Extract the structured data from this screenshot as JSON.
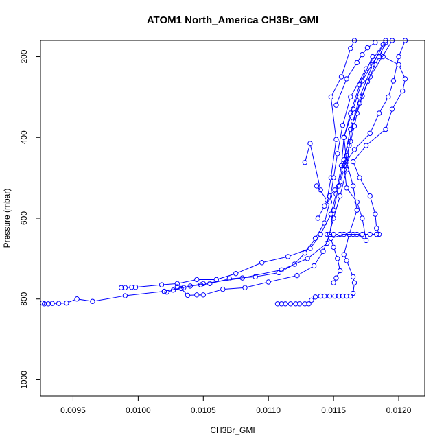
{
  "chart_data": {
    "type": "line",
    "title": "ATOM1 North_America CH3Br_GMI",
    "xlabel": "CH3Br_GMI",
    "ylabel": "Pressure (mbar)",
    "xlim": [
      0.00925,
      0.0122
    ],
    "ylim": [
      1040,
      160
    ],
    "y_axis_inverted": true,
    "x_ticks": [
      0.0095,
      0.01,
      0.0105,
      0.011,
      0.0115,
      0.012
    ],
    "x_tick_labels": [
      "0.0095",
      "0.0100",
      "0.0105",
      "0.0110",
      "0.0115",
      "0.0120"
    ],
    "y_ticks": [
      200,
      400,
      600,
      800,
      1000
    ],
    "y_tick_labels": [
      "200",
      "400",
      "600",
      "800",
      "1000"
    ],
    "grid": false,
    "series_color": "#0000ff",
    "marker": "open-circle",
    "series": [
      {
        "values": [
          {
            "x": 0.009265,
            "y": 810
          },
          {
            "x": 0.00928,
            "y": 812
          },
          {
            "x": 0.00931,
            "y": 812
          },
          {
            "x": 0.00934,
            "y": 811
          },
          {
            "x": 0.00939,
            "y": 811
          },
          {
            "x": 0.00945,
            "y": 810
          },
          {
            "x": 0.00953,
            "y": 800
          },
          {
            "x": 0.00965,
            "y": 806
          },
          {
            "x": 0.0099,
            "y": 792
          },
          {
            "x": 0.0102,
            "y": 781
          },
          {
            "x": 0.0105,
            "y": 762
          },
          {
            "x": 0.0108,
            "y": 748
          },
          {
            "x": 0.0111,
            "y": 728
          },
          {
            "x": 0.0113,
            "y": 700
          },
          {
            "x": 0.01145,
            "y": 662
          },
          {
            "x": 0.0115,
            "y": 600
          },
          {
            "x": 0.01155,
            "y": 545
          },
          {
            "x": 0.0116,
            "y": 480
          },
          {
            "x": 0.01162,
            "y": 420
          },
          {
            "x": 0.01165,
            "y": 360
          },
          {
            "x": 0.0117,
            "y": 300
          },
          {
            "x": 0.0118,
            "y": 220
          },
          {
            "x": 0.0119,
            "y": 160
          }
        ]
      },
      {
        "values": [
          {
            "x": 0.00987,
            "y": 772
          },
          {
            "x": 0.0099,
            "y": 772
          },
          {
            "x": 0.00995,
            "y": 771
          },
          {
            "x": 0.00998,
            "y": 771
          },
          {
            "x": 0.01018,
            "y": 765
          },
          {
            "x": 0.0103,
            "y": 762
          },
          {
            "x": 0.01045,
            "y": 752
          },
          {
            "x": 0.0106,
            "y": 752
          },
          {
            "x": 0.01075,
            "y": 737
          },
          {
            "x": 0.01095,
            "y": 710
          },
          {
            "x": 0.01115,
            "y": 695
          },
          {
            "x": 0.01132,
            "y": 675
          },
          {
            "x": 0.0114,
            "y": 640
          },
          {
            "x": 0.01148,
            "y": 590
          },
          {
            "x": 0.01152,
            "y": 540
          },
          {
            "x": 0.01156,
            "y": 470
          },
          {
            "x": 0.01158,
            "y": 400
          },
          {
            "x": 0.01165,
            "y": 330
          },
          {
            "x": 0.01172,
            "y": 260
          },
          {
            "x": 0.01185,
            "y": 190
          }
        ]
      },
      {
        "values": [
          {
            "x": 0.0102,
            "y": 782
          },
          {
            "x": 0.01022,
            "y": 783
          },
          {
            "x": 0.01027,
            "y": 778
          },
          {
            "x": 0.01033,
            "y": 774
          },
          {
            "x": 0.01038,
            "y": 791
          },
          {
            "x": 0.01045,
            "y": 790
          },
          {
            "x": 0.0105,
            "y": 790
          },
          {
            "x": 0.01065,
            "y": 776
          },
          {
            "x": 0.01082,
            "y": 772
          },
          {
            "x": 0.011,
            "y": 758
          },
          {
            "x": 0.01122,
            "y": 742
          },
          {
            "x": 0.01135,
            "y": 718
          },
          {
            "x": 0.01142,
            "y": 682
          },
          {
            "x": 0.01147,
            "y": 640
          },
          {
            "x": 0.0115,
            "y": 580
          },
          {
            "x": 0.01154,
            "y": 520
          },
          {
            "x": 0.01158,
            "y": 455
          },
          {
            "x": 0.01163,
            "y": 380
          },
          {
            "x": 0.0117,
            "y": 315
          },
          {
            "x": 0.01178,
            "y": 250
          },
          {
            "x": 0.01195,
            "y": 160
          }
        ]
      },
      {
        "values": [
          {
            "x": 0.0103,
            "y": 770
          },
          {
            "x": 0.01035,
            "y": 772
          },
          {
            "x": 0.0104,
            "y": 768
          },
          {
            "x": 0.01048,
            "y": 765
          },
          {
            "x": 0.01055,
            "y": 762
          },
          {
            "x": 0.0107,
            "y": 750
          },
          {
            "x": 0.0109,
            "y": 745
          },
          {
            "x": 0.01108,
            "y": 735
          },
          {
            "x": 0.0112,
            "y": 714
          },
          {
            "x": 0.01128,
            "y": 686
          },
          {
            "x": 0.01136,
            "y": 650
          },
          {
            "x": 0.01143,
            "y": 612
          },
          {
            "x": 0.01147,
            "y": 560
          },
          {
            "x": 0.0115,
            "y": 500
          },
          {
            "x": 0.01153,
            "y": 440
          },
          {
            "x": 0.01157,
            "y": 370
          },
          {
            "x": 0.01163,
            "y": 300
          },
          {
            "x": 0.01175,
            "y": 230
          },
          {
            "x": 0.01188,
            "y": 170
          }
        ]
      },
      {
        "values": [
          {
            "x": 0.01107,
            "y": 812
          },
          {
            "x": 0.0111,
            "y": 812
          },
          {
            "x": 0.01113,
            "y": 812
          },
          {
            "x": 0.01117,
            "y": 812
          },
          {
            "x": 0.01121,
            "y": 812
          },
          {
            "x": 0.01124,
            "y": 812
          },
          {
            "x": 0.01128,
            "y": 812
          },
          {
            "x": 0.01131,
            "y": 812
          },
          {
            "x": 0.01133,
            "y": 803
          },
          {
            "x": 0.01136,
            "y": 795
          },
          {
            "x": 0.0114,
            "y": 793
          },
          {
            "x": 0.01143,
            "y": 793
          },
          {
            "x": 0.01147,
            "y": 793
          },
          {
            "x": 0.01151,
            "y": 793
          },
          {
            "x": 0.01154,
            "y": 793
          },
          {
            "x": 0.01157,
            "y": 793
          },
          {
            "x": 0.0116,
            "y": 793
          },
          {
            "x": 0.01163,
            "y": 793
          },
          {
            "x": 0.01165,
            "y": 786
          },
          {
            "x": 0.01166,
            "y": 760
          },
          {
            "x": 0.01165,
            "y": 745
          },
          {
            "x": 0.0116,
            "y": 705
          },
          {
            "x": 0.01158,
            "y": 690
          },
          {
            "x": 0.01162,
            "y": 640
          },
          {
            "x": 0.01168,
            "y": 580
          },
          {
            "x": 0.01165,
            "y": 520
          },
          {
            "x": 0.0116,
            "y": 460
          },
          {
            "x": 0.01158,
            "y": 400
          },
          {
            "x": 0.01163,
            "y": 340
          },
          {
            "x": 0.0117,
            "y": 270
          },
          {
            "x": 0.0118,
            "y": 200
          }
        ]
      },
      {
        "values": [
          {
            "x": 0.0115,
            "y": 760
          },
          {
            "x": 0.01152,
            "y": 748
          },
          {
            "x": 0.01155,
            "y": 730
          },
          {
            "x": 0.01153,
            "y": 700
          },
          {
            "x": 0.0115,
            "y": 672
          },
          {
            "x": 0.01148,
            "y": 650
          },
          {
            "x": 0.01158,
            "y": 640
          },
          {
            "x": 0.01165,
            "y": 640
          },
          {
            "x": 0.01172,
            "y": 640
          },
          {
            "x": 0.01178,
            "y": 640
          },
          {
            "x": 0.01183,
            "y": 640
          },
          {
            "x": 0.01185,
            "y": 640
          },
          {
            "x": 0.01183,
            "y": 625
          },
          {
            "x": 0.01182,
            "y": 590
          },
          {
            "x": 0.01178,
            "y": 545
          },
          {
            "x": 0.0117,
            "y": 500
          },
          {
            "x": 0.01165,
            "y": 460
          },
          {
            "x": 0.01175,
            "y": 420
          },
          {
            "x": 0.0119,
            "y": 380
          },
          {
            "x": 0.01195,
            "y": 330
          },
          {
            "x": 0.01203,
            "y": 285
          },
          {
            "x": 0.01205,
            "y": 255
          },
          {
            "x": 0.012,
            "y": 220
          },
          {
            "x": 0.01188,
            "y": 200
          }
        ]
      },
      {
        "values": [
          {
            "x": 0.01128,
            "y": 462
          },
          {
            "x": 0.01132,
            "y": 415
          },
          {
            "x": 0.0114,
            "y": 530
          },
          {
            "x": 0.01137,
            "y": 520
          },
          {
            "x": 0.01145,
            "y": 555
          },
          {
            "x": 0.01148,
            "y": 500
          },
          {
            "x": 0.01152,
            "y": 405
          },
          {
            "x": 0.01148,
            "y": 300
          },
          {
            "x": 0.01156,
            "y": 250
          },
          {
            "x": 0.01163,
            "y": 180
          },
          {
            "x": 0.01166,
            "y": 160
          }
        ]
      },
      {
        "values": [
          {
            "x": 0.01145,
            "y": 640
          },
          {
            "x": 0.0115,
            "y": 640
          },
          {
            "x": 0.01155,
            "y": 640
          },
          {
            "x": 0.01162,
            "y": 640
          },
          {
            "x": 0.01168,
            "y": 640
          },
          {
            "x": 0.01175,
            "y": 655
          },
          {
            "x": 0.01172,
            "y": 600
          },
          {
            "x": 0.01168,
            "y": 560
          },
          {
            "x": 0.0116,
            "y": 525
          },
          {
            "x": 0.01158,
            "y": 470
          },
          {
            "x": 0.01166,
            "y": 430
          },
          {
            "x": 0.01178,
            "y": 390
          },
          {
            "x": 0.01185,
            "y": 340
          },
          {
            "x": 0.01192,
            "y": 300
          },
          {
            "x": 0.01196,
            "y": 260
          },
          {
            "x": 0.012,
            "y": 200
          },
          {
            "x": 0.01205,
            "y": 160
          }
        ]
      },
      {
        "values": [
          {
            "x": 0.01138,
            "y": 600
          },
          {
            "x": 0.01143,
            "y": 570
          },
          {
            "x": 0.01147,
            "y": 545
          },
          {
            "x": 0.01151,
            "y": 530
          },
          {
            "x": 0.01155,
            "y": 510
          },
          {
            "x": 0.01158,
            "y": 480
          },
          {
            "x": 0.0116,
            "y": 445
          },
          {
            "x": 0.01163,
            "y": 410
          },
          {
            "x": 0.01166,
            "y": 372
          },
          {
            "x": 0.01168,
            "y": 340
          },
          {
            "x": 0.01172,
            "y": 298
          },
          {
            "x": 0.01176,
            "y": 262
          },
          {
            "x": 0.01182,
            "y": 220
          },
          {
            "x": 0.01185,
            "y": 200
          },
          {
            "x": 0.0119,
            "y": 165
          }
        ]
      },
      {
        "values": [
          {
            "x": 0.01152,
            "y": 320
          },
          {
            "x": 0.0116,
            "y": 255
          },
          {
            "x": 0.01168,
            "y": 215
          },
          {
            "x": 0.01172,
            "y": 195
          },
          {
            "x": 0.01176,
            "y": 178
          },
          {
            "x": 0.01182,
            "y": 165
          }
        ]
      }
    ]
  }
}
